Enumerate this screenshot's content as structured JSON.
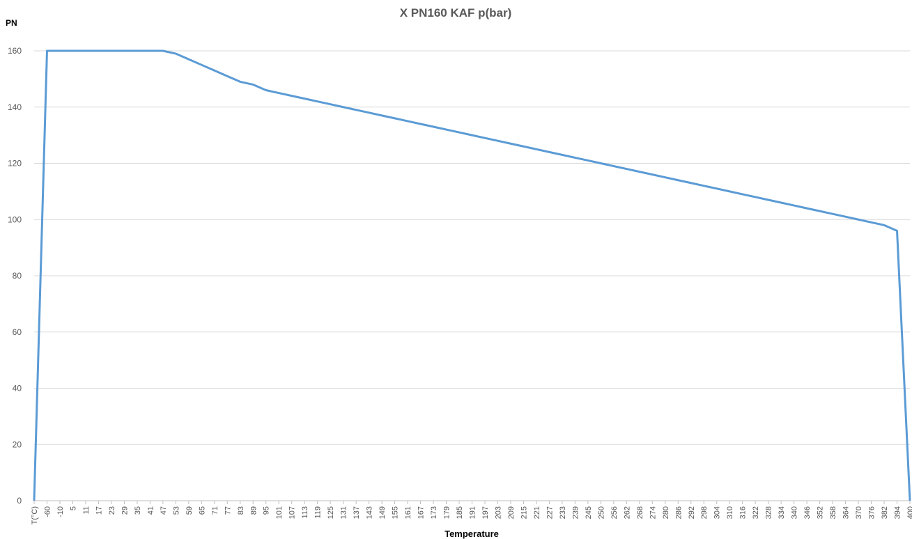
{
  "chart_data": {
    "type": "line",
    "title": "X PN160 KAF p(bar)",
    "xlabel": "Temperature",
    "ylabel": "PN",
    "categories": [
      "T(°C)",
      "-60",
      "-10",
      "5",
      "11",
      "17",
      "23",
      "29",
      "35",
      "41",
      "47",
      "53",
      "59",
      "65",
      "71",
      "77",
      "83",
      "89",
      "95",
      "101",
      "107",
      "113",
      "119",
      "125",
      "131",
      "137",
      "143",
      "149",
      "155",
      "161",
      "167",
      "173",
      "179",
      "185",
      "191",
      "197",
      "203",
      "209",
      "215",
      "221",
      "227",
      "233",
      "239",
      "245",
      "250",
      "256",
      "262",
      "268",
      "274",
      "280",
      "286",
      "292",
      "298",
      "304",
      "310",
      "316",
      "322",
      "328",
      "334",
      "340",
      "346",
      "352",
      "358",
      "364",
      "370",
      "376",
      "382",
      "394",
      "400"
    ],
    "series": [
      {
        "color": "#5b9bd5",
        "values": [
          0,
          160,
          160,
          160,
          160,
          160,
          160,
          160,
          160,
          160,
          160,
          159,
          157,
          155,
          153,
          151,
          149,
          148,
          146,
          145,
          144,
          143,
          142,
          141,
          140,
          139,
          138,
          137,
          136,
          135,
          134,
          133,
          132,
          131,
          130,
          129,
          128,
          127,
          126,
          125,
          124,
          123,
          122,
          121,
          120,
          119,
          118,
          117,
          116,
          115,
          114,
          113,
          112,
          111,
          110,
          109,
          108,
          107,
          106,
          105,
          104,
          103,
          102,
          101,
          100,
          99,
          98,
          96,
          0
        ]
      }
    ],
    "yticks": [
      0,
      20,
      40,
      60,
      80,
      100,
      120,
      140,
      160
    ],
    "ylim": [
      0,
      160
    ],
    "grid": "horizontal",
    "legend": "none"
  }
}
